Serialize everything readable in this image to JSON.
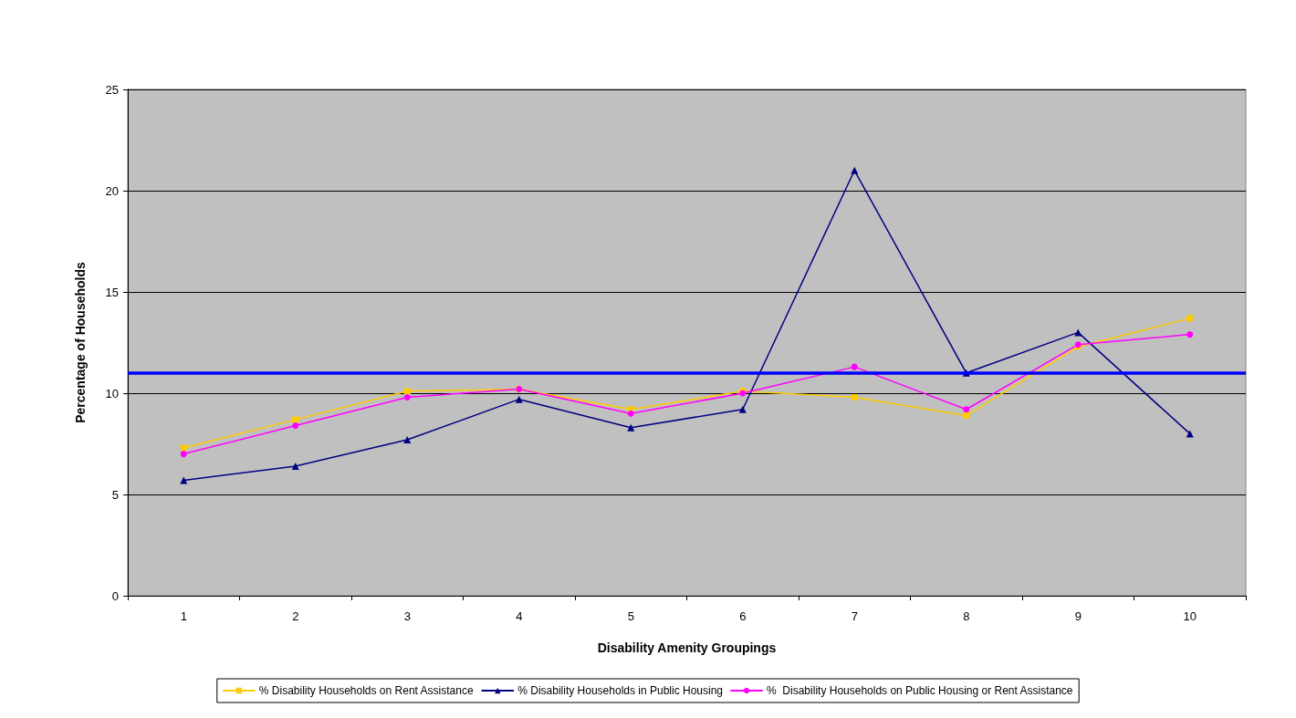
{
  "chart_data": {
    "type": "line",
    "xlabel": "Disability Amenity Groupings",
    "ylabel": "Percentage of Households",
    "categories": [
      "1",
      "2",
      "3",
      "4",
      "5",
      "6",
      "7",
      "8",
      "9",
      "10"
    ],
    "series": [
      {
        "name": "% Disability Households on Rent Assistance",
        "color": "#ffcc00",
        "marker": "square",
        "values": [
          7.3,
          8.7,
          10.1,
          10.2,
          9.2,
          10.1,
          9.8,
          8.9,
          12.3,
          13.7
        ]
      },
      {
        "name": "% Disability Households in Public Housing",
        "color": "#000080",
        "marker": "triangle",
        "values": [
          5.7,
          6.4,
          7.7,
          9.7,
          8.3,
          9.2,
          21.0,
          11.0,
          13.0,
          8.0
        ]
      },
      {
        "name": "%  Disability Households on Public Housing or Rent Assistance",
        "color": "#ff00ff",
        "marker": "circle",
        "values": [
          7.0,
          8.4,
          9.8,
          10.2,
          9.0,
          10.0,
          11.3,
          9.2,
          12.4,
          12.9
        ]
      }
    ],
    "ylim": [
      0,
      25
    ],
    "yticks": [
      0,
      5,
      10,
      15,
      20,
      25
    ],
    "grid": "y",
    "legend": "bottom",
    "line_style": "solid",
    "ref_lines": [
      {
        "axis": "y",
        "value": 11,
        "label": null,
        "color": "#0000ff"
      }
    ]
  }
}
